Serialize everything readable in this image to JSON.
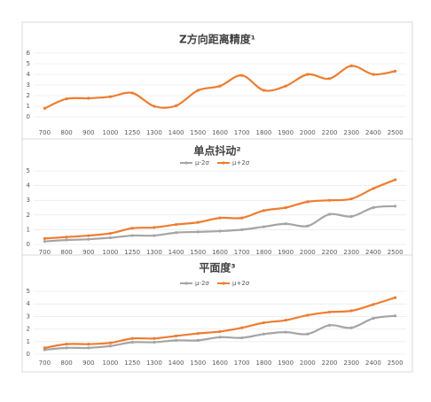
{
  "chart_data": [
    {
      "type": "line",
      "title": "Z方向距离精度¹",
      "categories": [
        "700",
        "800",
        "900",
        "1000",
        "1250",
        "1300",
        "1400",
        "1500",
        "1600",
        "1700",
        "1800",
        "1900",
        "2000",
        "2200",
        "2300",
        "2400",
        "2500"
      ],
      "series": [
        {
          "name": null,
          "color": "#ed7d31",
          "values": [
            0.8,
            1.7,
            1.75,
            1.9,
            2.25,
            1.0,
            1.05,
            2.5,
            2.9,
            3.9,
            2.5,
            2.9,
            4.0,
            3.6,
            4.8,
            4.0,
            4.3
          ]
        }
      ],
      "ylim": [
        0,
        6
      ],
      "yticks": [
        0,
        1,
        2,
        3,
        4,
        5,
        6
      ],
      "grid": true,
      "legend": null
    },
    {
      "type": "line",
      "title": "单点抖动²",
      "categories": [
        "700",
        "800",
        "900",
        "1000",
        "1250",
        "1300",
        "1400",
        "1500",
        "1600",
        "1700",
        "1800",
        "1900",
        "2000",
        "2200",
        "2300",
        "2400",
        "2500"
      ],
      "series": [
        {
          "name": "μ-2σ",
          "color": "#a5a5a5",
          "values": [
            0.2,
            0.3,
            0.35,
            0.45,
            0.6,
            0.6,
            0.8,
            0.85,
            0.9,
            1.0,
            1.2,
            1.4,
            1.25,
            2.05,
            1.9,
            2.5,
            2.6
          ]
        },
        {
          "name": "μ+2σ",
          "color": "#ed7d31",
          "values": [
            0.4,
            0.5,
            0.6,
            0.75,
            1.1,
            1.15,
            1.35,
            1.5,
            1.8,
            1.8,
            2.3,
            2.5,
            2.9,
            3.0,
            3.1,
            3.8,
            4.4
          ]
        }
      ],
      "ylim": [
        0,
        5
      ],
      "yticks": [
        0,
        1,
        2,
        3,
        4,
        5
      ],
      "grid": true,
      "legend": "top"
    },
    {
      "type": "line",
      "title": "平面度³",
      "categories": [
        "700",
        "800",
        "900",
        "1000",
        "1250",
        "1300",
        "1400",
        "1500",
        "1600",
        "1700",
        "1800",
        "1900",
        "2000",
        "2200",
        "2300",
        "2400",
        "2500"
      ],
      "series": [
        {
          "name": "μ-2σ",
          "color": "#a5a5a5",
          "values": [
            0.35,
            0.5,
            0.5,
            0.65,
            0.95,
            0.95,
            1.1,
            1.1,
            1.35,
            1.3,
            1.6,
            1.75,
            1.6,
            2.3,
            2.1,
            2.85,
            3.05
          ]
        },
        {
          "name": "μ+2σ",
          "color": "#ed7d31",
          "values": [
            0.5,
            0.8,
            0.8,
            0.9,
            1.25,
            1.25,
            1.45,
            1.65,
            1.8,
            2.1,
            2.5,
            2.7,
            3.1,
            3.35,
            3.45,
            3.95,
            4.5
          ]
        }
      ],
      "ylim": [
        0,
        5
      ],
      "yticks": [
        0,
        1,
        2,
        3,
        4,
        5
      ],
      "grid": true,
      "legend": "top"
    }
  ]
}
